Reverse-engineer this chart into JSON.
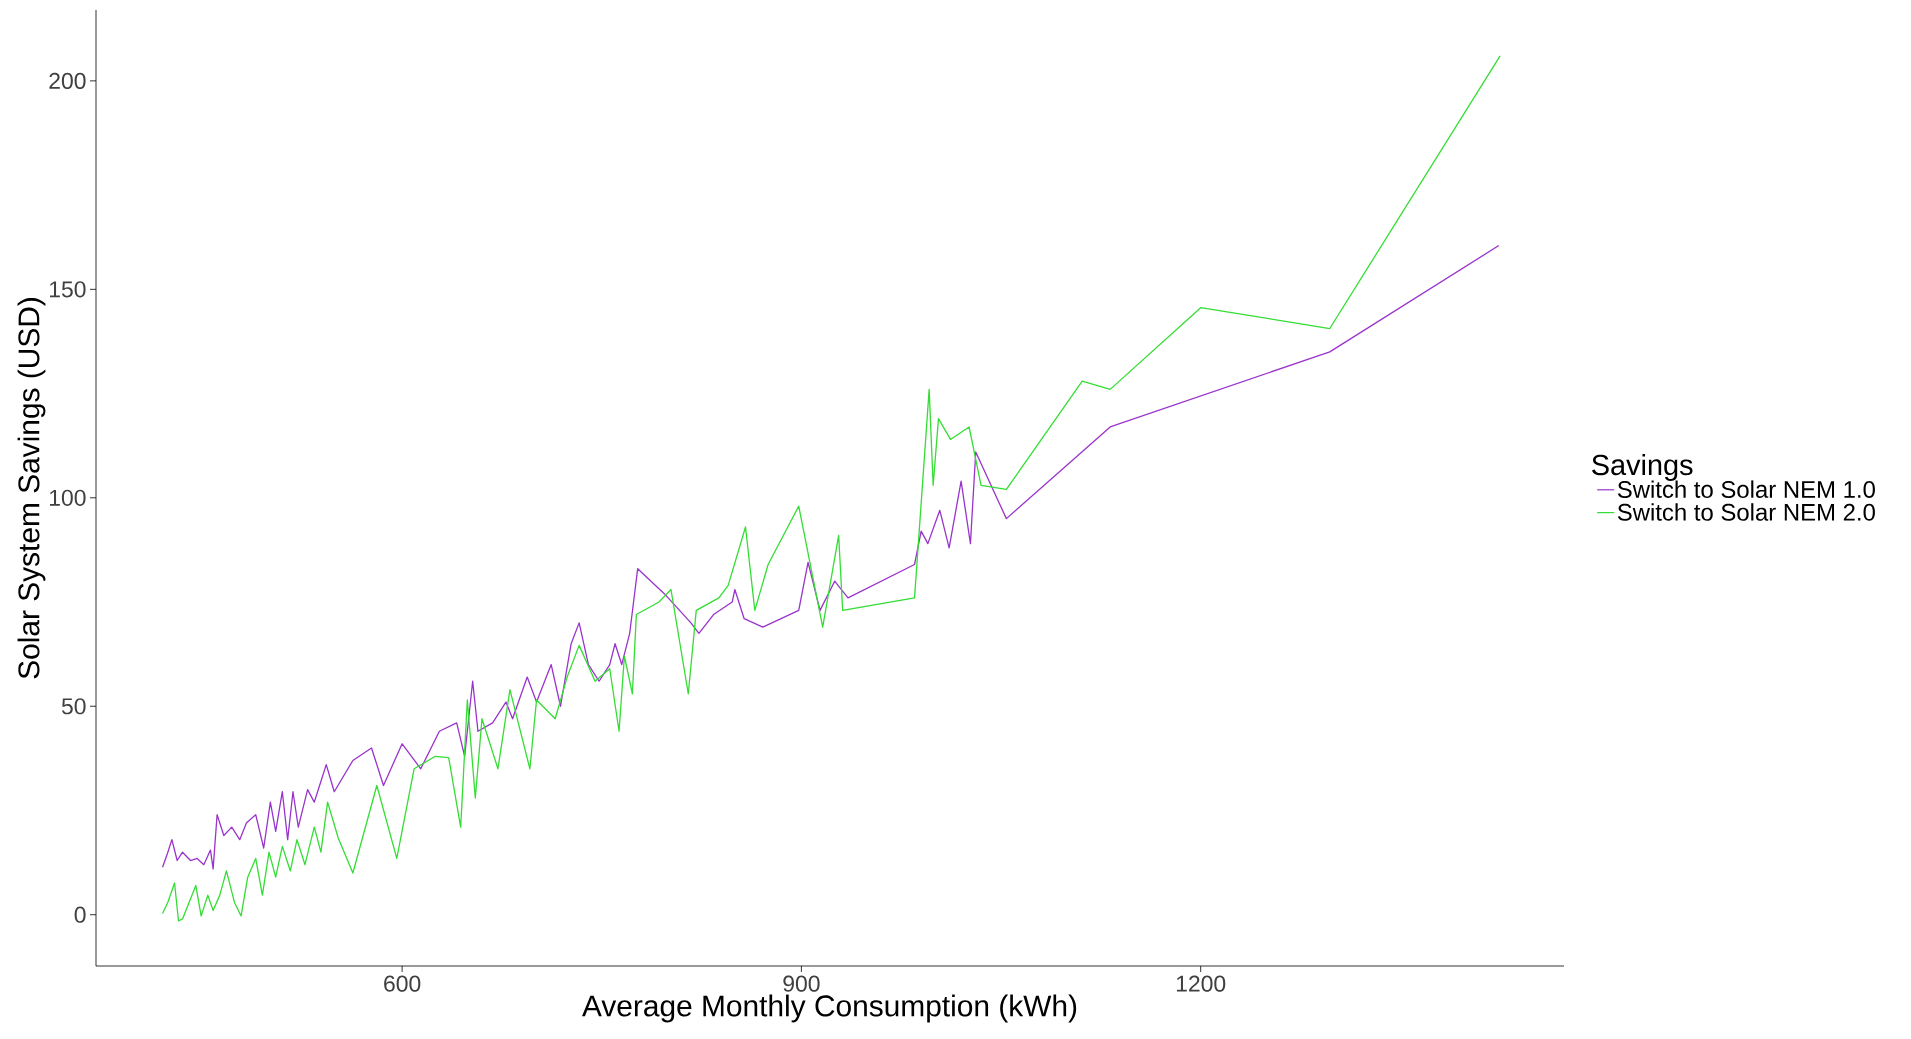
{
  "chart_data": {
    "type": "line",
    "xlabel": "Average Monthly Consumption (kWh)",
    "ylabel": "Solar System Savings (USD)",
    "legend_title": "Savings",
    "legend": "right",
    "xlim": [
      370,
      1473
    ],
    "ylim": [
      -12.3,
      217
    ],
    "xticks": [
      600,
      900,
      1200
    ],
    "yticks": [
      0,
      50,
      100,
      150,
      200
    ],
    "series": [
      {
        "name": "Switch to Solar NEM 1.0",
        "color": "#9933cc",
        "x": [
          420,
          424,
          427,
          431,
          435,
          441,
          446,
          451,
          456,
          458,
          461,
          466,
          472,
          478,
          483,
          490,
          496,
          501,
          505,
          510,
          514,
          518,
          522,
          529,
          534,
          538,
          543,
          549,
          563,
          577,
          586,
          600,
          614,
          628,
          641,
          647,
          653,
          657,
          668,
          678,
          683,
          694,
          701,
          712,
          719,
          727,
          733,
          740,
          748,
          756,
          760,
          765,
          771,
          777,
          797,
          817,
          823,
          834,
          848,
          850,
          857,
          871,
          898,
          905,
          914,
          925,
          935,
          985,
          990,
          995,
          1004,
          1011,
          1020,
          1027,
          1031,
          1054,
          1132,
          1297,
          1424
        ],
        "values": [
          11.4,
          15,
          18,
          13,
          15,
          13,
          13.5,
          12,
          15.5,
          11,
          24,
          19,
          21,
          18,
          22,
          24,
          16,
          27,
          20,
          29.5,
          18,
          29.5,
          21,
          30,
          27,
          31,
          36,
          29.5,
          37,
          40,
          31,
          41,
          35,
          44,
          46,
          38,
          56,
          44,
          46,
          51,
          47,
          57,
          51,
          60,
          50,
          65,
          70,
          60,
          56,
          60,
          65,
          60,
          67.5,
          83,
          77,
          70,
          67.5,
          72,
          75,
          78,
          71,
          69,
          73,
          84.5,
          73,
          80,
          76,
          84,
          92,
          89,
          97,
          88,
          104,
          89,
          111,
          95,
          117,
          135,
          160.5
        ]
      },
      {
        "name": "Switch to Solar NEM 2.0",
        "color": "#33dd33",
        "x": [
          420,
          424,
          429,
          432,
          435,
          440,
          445,
          449,
          454,
          458,
          463,
          468,
          474,
          479,
          484,
          490,
          495,
          500,
          505,
          510,
          516,
          521,
          527,
          534,
          539,
          544,
          552,
          563,
          581,
          596,
          609,
          625,
          635,
          644,
          649,
          655,
          660,
          672,
          681,
          696,
          701,
          715,
          724,
          733,
          745,
          756,
          763,
          767,
          773,
          776,
          793,
          802,
          815,
          821,
          838,
          845,
          858,
          865,
          875,
          898,
          916,
          928,
          931,
          985,
          996,
          999,
          1003,
          1012,
          1026,
          1035,
          1054,
          1111,
          1132,
          1200,
          1297,
          1425
        ],
        "values": [
          0.3,
          3,
          7.6,
          -1.5,
          -1,
          3,
          7,
          -0.3,
          4.7,
          1,
          4.7,
          10.5,
          3,
          -0.3,
          9,
          13.5,
          4.7,
          15,
          9,
          16.4,
          10.5,
          18,
          12,
          21,
          15,
          27,
          18.4,
          10,
          31,
          13.5,
          35,
          38,
          37.7,
          21,
          51.5,
          28,
          47,
          35,
          54,
          35,
          51.5,
          47,
          57,
          64.6,
          56,
          59,
          44,
          62,
          53,
          72,
          75,
          78,
          53,
          73,
          76,
          79,
          93,
          73,
          84,
          98,
          69,
          91,
          73,
          76,
          126,
          103,
          119,
          114,
          117,
          103,
          102,
          128,
          126,
          145.6,
          140.6,
          206
        ]
      }
    ]
  }
}
